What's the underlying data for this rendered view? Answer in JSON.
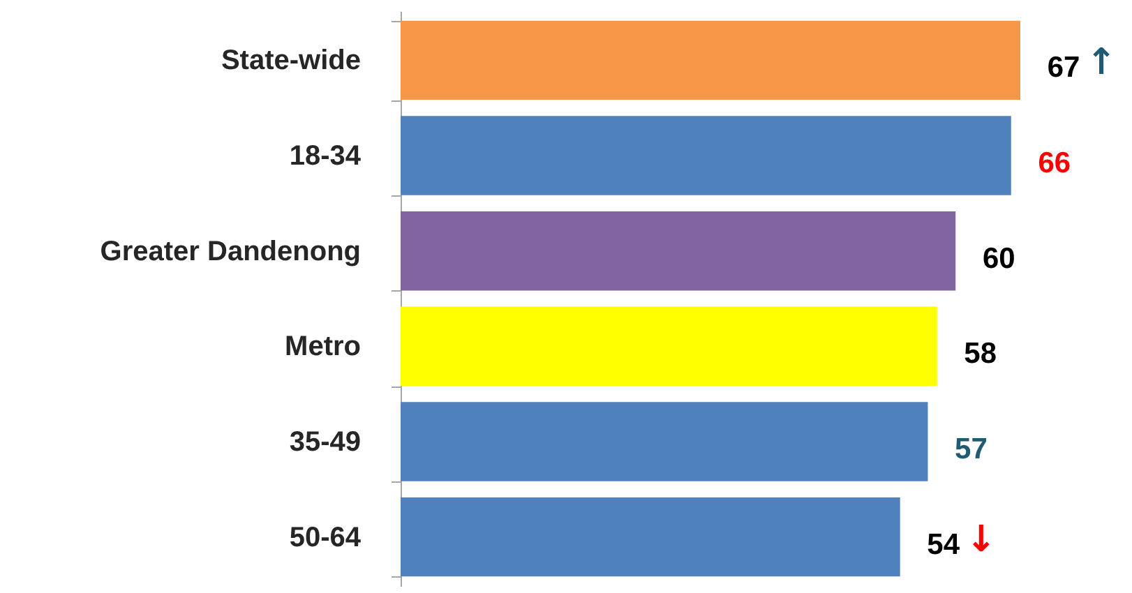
{
  "chart_data": {
    "type": "bar",
    "orientation": "horizontal",
    "data_labels": true,
    "categories": [
      "State-wide",
      "18-34",
      "Greater Dandenong",
      "Metro",
      "35-49",
      "50-64"
    ],
    "values": [
      67,
      66,
      60,
      58,
      57,
      54
    ],
    "colors": [
      "#f79646",
      "#4f81bd",
      "#8064a2",
      "#ffff00",
      "#4f81bd",
      "#4f81bd"
    ],
    "annotations": [
      {
        "text": "↑",
        "x": 67,
        "y": "State-wide"
      },
      {
        "text": "↓",
        "x": 54,
        "y": "50-64"
      }
    ]
  }
}
